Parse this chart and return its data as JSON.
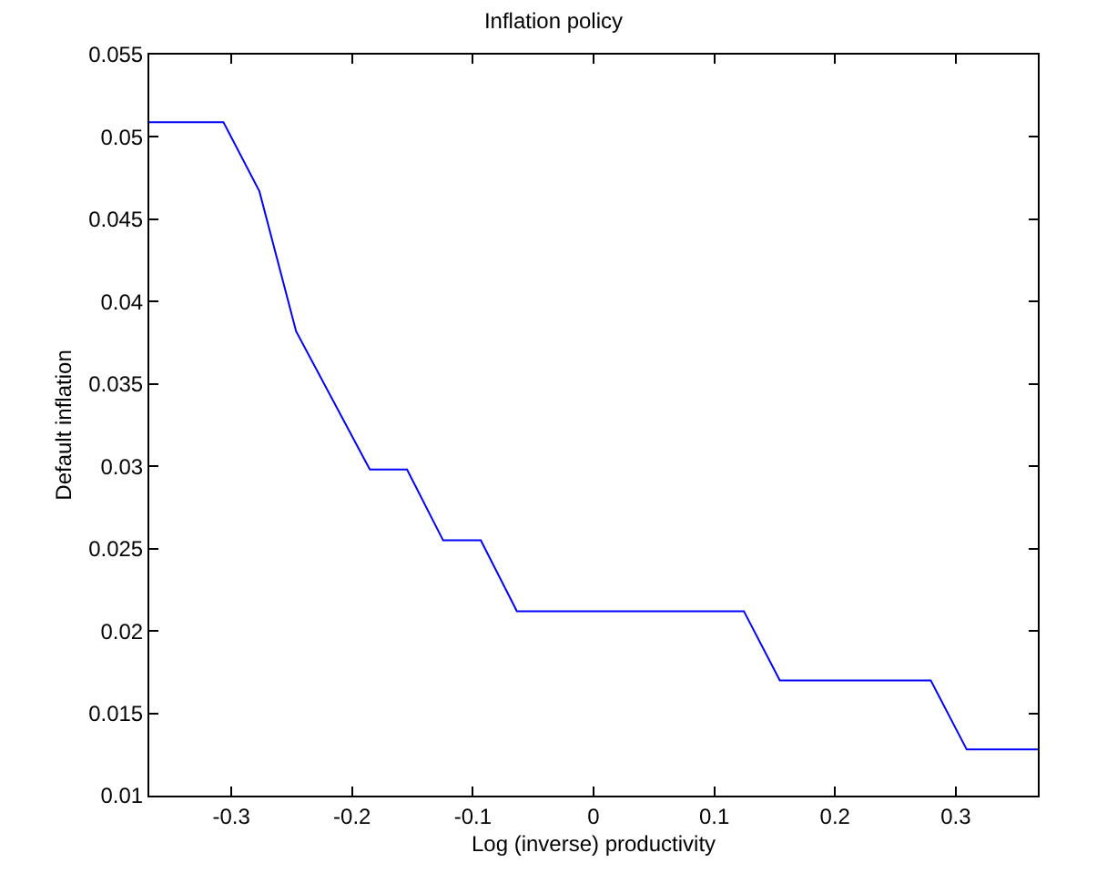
{
  "chart_data": {
    "type": "line",
    "title": "Inflation policy",
    "xlabel": "Log (inverse) productivity",
    "ylabel": "Default inflation",
    "x": [
      -0.368,
      -0.3066,
      -0.2768,
      -0.2464,
      -0.1853,
      -0.1545,
      -0.1246,
      -0.0934,
      -0.0635,
      0.1245,
      0.1543,
      0.2793,
      0.3091,
      0.368
    ],
    "series": [
      {
        "color": "#0000ff",
        "values": [
          0.0509,
          0.0509,
          0.0467,
          0.0382,
          0.0298,
          0.0298,
          0.0255,
          0.0255,
          0.0212,
          0.0212,
          0.017,
          0.017,
          0.0128,
          0.0128
        ]
      }
    ],
    "xlim": [
      -0.368,
      0.368
    ],
    "xticks": [
      -0.3,
      -0.2,
      -0.1,
      0,
      0.1,
      0.2,
      0.3
    ],
    "ylim": [
      0.01,
      0.055
    ],
    "yticks": [
      0.01,
      0.015,
      0.02,
      0.025,
      0.03,
      0.035,
      0.04,
      0.045,
      0.05,
      0.055
    ],
    "grid": false,
    "marker": "none",
    "line_style": "solid"
  }
}
